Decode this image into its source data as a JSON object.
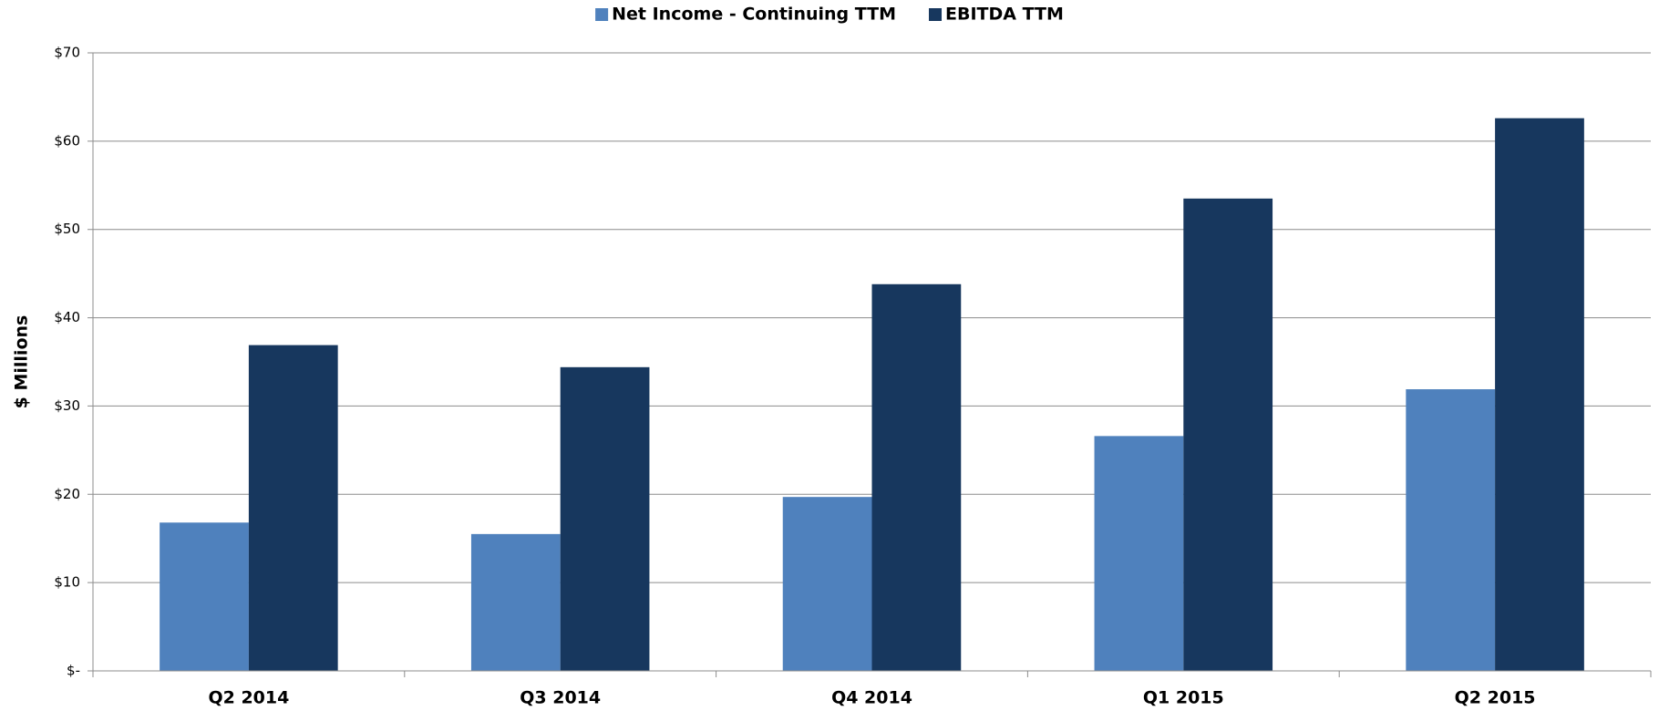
{
  "chart_data": {
    "type": "bar",
    "y_label": "$ Millions",
    "categories": [
      "Q2 2014",
      "Q3 2014",
      "Q4 2014",
      "Q1 2015",
      "Q2 2015"
    ],
    "series": [
      {
        "name": "Net Income - Continuing TTM",
        "color": "#4f81bd",
        "values": [
          16.8,
          15.5,
          19.7,
          26.6,
          31.9
        ]
      },
      {
        "name": "EBITDA TTM",
        "color": "#17375e",
        "values": [
          36.9,
          34.4,
          43.8,
          53.5,
          62.6
        ]
      }
    ],
    "ylim": [
      0,
      70
    ],
    "yticks": [
      {
        "value": 0,
        "label": "$-"
      },
      {
        "value": 10,
        "label": "$10"
      },
      {
        "value": 20,
        "label": "$20"
      },
      {
        "value": 30,
        "label": "$30"
      },
      {
        "value": 40,
        "label": "$40"
      },
      {
        "value": 50,
        "label": "$50"
      },
      {
        "value": 60,
        "label": "$60"
      },
      {
        "value": 70,
        "label": "$70"
      }
    ],
    "grid": true,
    "legend": "top"
  }
}
